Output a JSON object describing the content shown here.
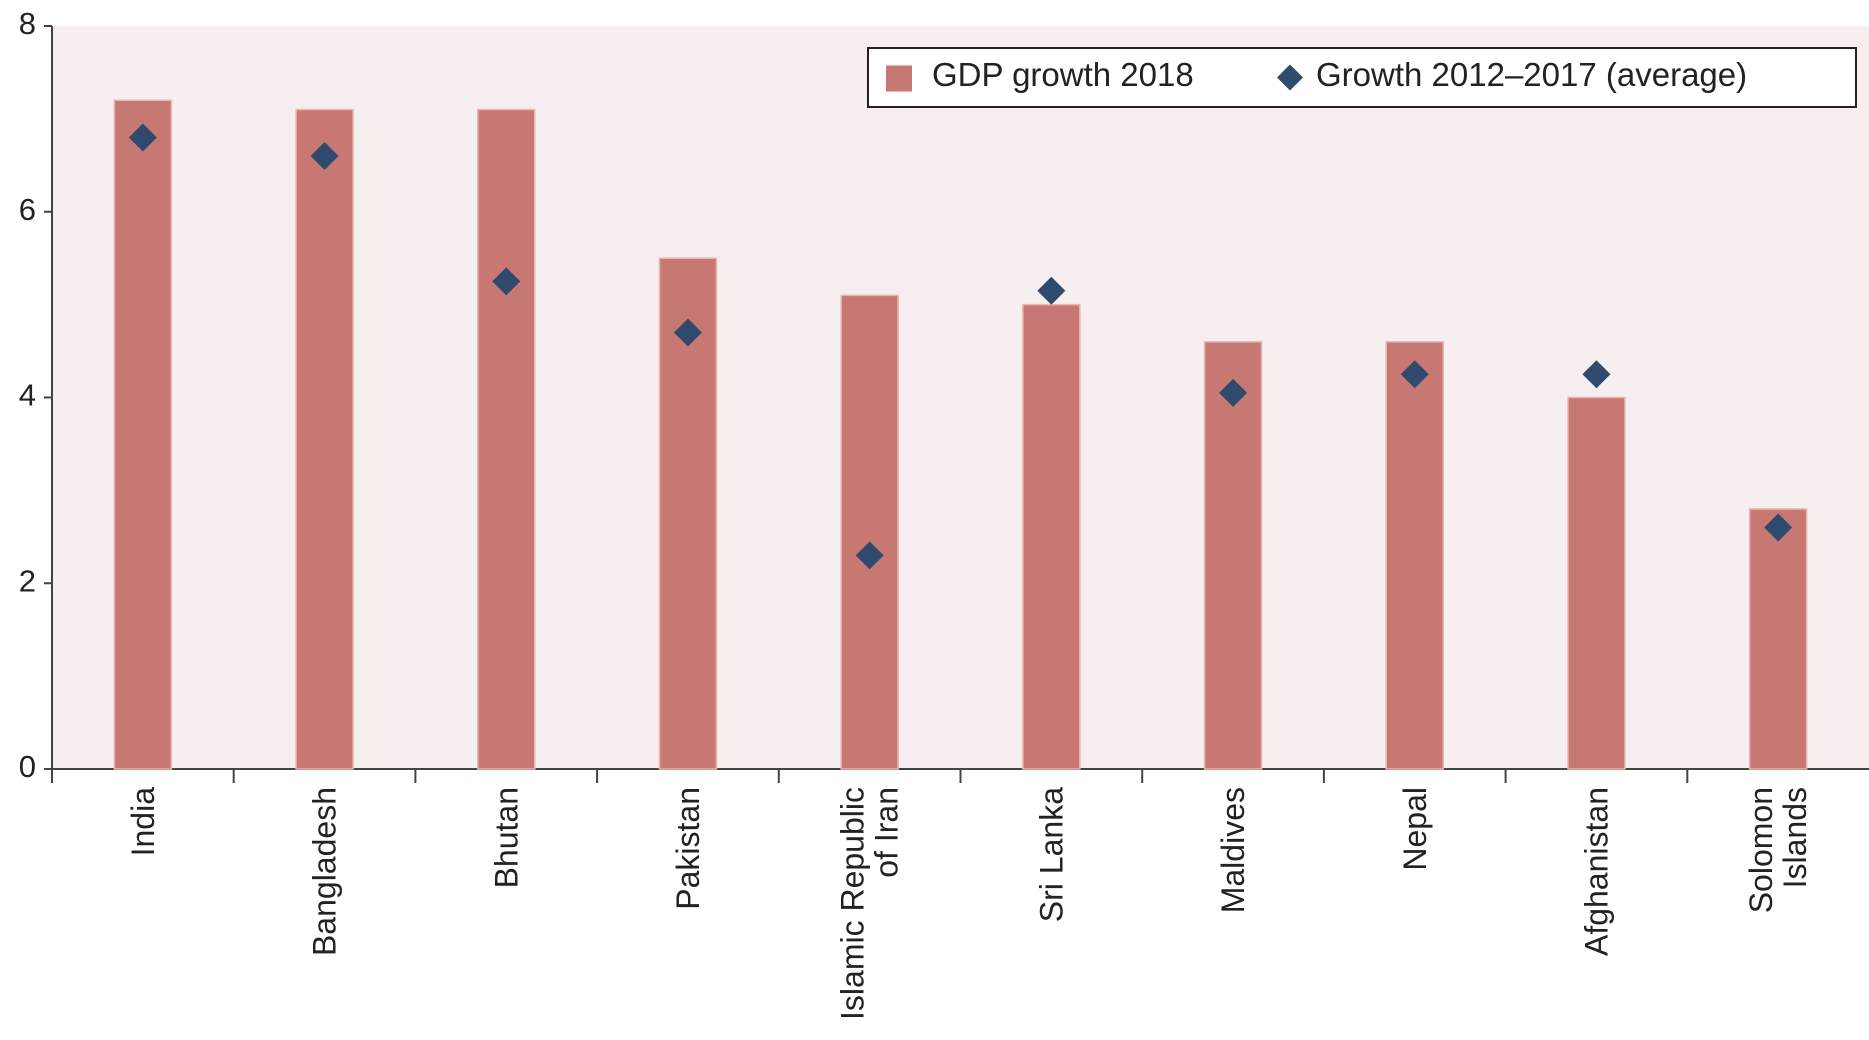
{
  "chart_data": {
    "type": "bar",
    "categories": [
      "India",
      "Bangladesh",
      "Bhutan",
      "Pakistan",
      "Islamic Republic of Iran",
      "Sri Lanka",
      "Maldives",
      "Nepal",
      "Afghanistan",
      "Solomon Islands"
    ],
    "series": [
      {
        "name": "GDP growth 2018",
        "type": "bar",
        "color": "#c87872",
        "values": [
          7.2,
          7.1,
          7.1,
          5.5,
          5.1,
          5.0,
          4.6,
          4.6,
          4.0,
          2.8
        ]
      },
      {
        "name": "Growth 2012–2017 (average)",
        "type": "scatter",
        "marker": "diamond",
        "color": "#2f4a6d",
        "values": [
          6.8,
          6.6,
          5.25,
          4.7,
          2.3,
          5.15,
          4.05,
          4.25,
          4.25,
          2.6
        ]
      }
    ],
    "ylim": [
      0,
      8
    ],
    "yticks": [
      0,
      2,
      4,
      6,
      8
    ],
    "legend": "top-right"
  }
}
